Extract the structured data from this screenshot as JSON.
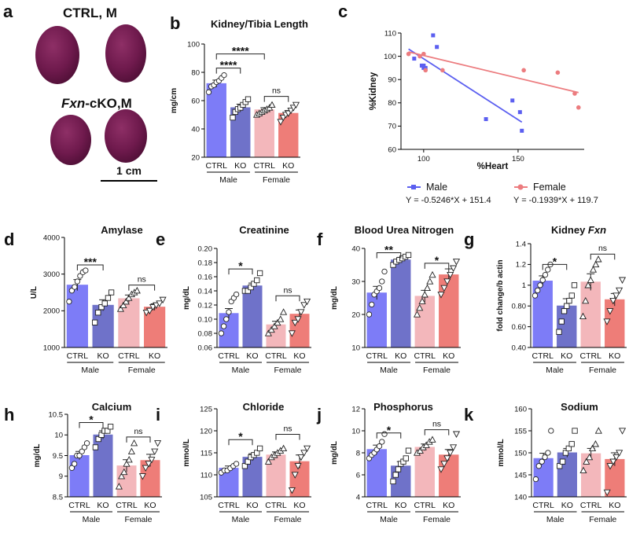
{
  "figure": {
    "photo": {
      "letter": "a",
      "ctrl_label": "CTRL, M",
      "ko_label_italic": "Fxn",
      "ko_label_rest": "-cKO,M",
      "scale_label": "1 cm"
    },
    "scatter_legend": {
      "equations": [
        "Y = -0.5246*X + 151.4",
        "Y = -0.1939*X + 119.7"
      ]
    }
  },
  "colors": {
    "ctrl_male": "#7d7cf7",
    "ko_male": "#6f72c9",
    "ctrl_female": "#f3b7bb",
    "ko_female": "#ee7d78",
    "male_line": "#5b5ff0",
    "female_line": "#ec7c7f"
  },
  "chart_data": [
    {
      "id": "b",
      "type": "bar",
      "letter": "b",
      "title": "Kidney/Tibia Length",
      "ylabel": "mg/cm",
      "ylim": [
        20,
        100
      ],
      "yticks": [
        20,
        40,
        60,
        80,
        100
      ],
      "categories": [
        "CTRL",
        "KO",
        "CTRL",
        "KO"
      ],
      "groups": [
        "Male",
        "Female"
      ],
      "values": [
        72,
        55,
        53.5,
        51
      ],
      "errors": [
        2.5,
        2.5,
        1.5,
        2
      ],
      "points": [
        [
          66,
          70,
          71,
          73,
          74,
          76,
          78
        ],
        [
          48,
          52,
          54,
          55,
          57,
          59,
          61
        ],
        [
          50,
          51,
          52,
          53,
          54,
          55,
          57
        ],
        [
          45,
          48,
          50,
          51,
          53,
          55,
          57
        ]
      ],
      "markers": [
        "circle",
        "square",
        "triangle",
        "tri-down"
      ],
      "sig": [
        {
          "a": 0,
          "b": 1,
          "label": "****",
          "level": 83
        },
        {
          "a": 0,
          "b": 2,
          "label": "****",
          "level": 93
        },
        {
          "a": 2,
          "b": 3,
          "label": "ns",
          "level": 63
        }
      ]
    },
    {
      "id": "c",
      "type": "scatter",
      "letter": "c",
      "xlabel": "%Heart",
      "ylabel": "%Kidney",
      "xlim": [
        88,
        185
      ],
      "ylim": [
        60,
        110
      ],
      "xticks": [
        100,
        150
      ],
      "yticks": [
        60,
        70,
        80,
        90,
        100,
        110
      ],
      "series": [
        {
          "name": "Male",
          "marker": "square",
          "x": [
            95,
            99,
            100,
            100,
            101,
            105,
            107,
            133,
            147,
            151,
            152
          ],
          "y": [
            99,
            96,
            95,
            96,
            95,
            109,
            104,
            73,
            81,
            76,
            68
          ]
        },
        {
          "name": "Female",
          "marker": "circle",
          "x": [
            92,
            98,
            100,
            101,
            110,
            153,
            171,
            180,
            182
          ],
          "y": [
            101,
            100,
            101,
            94,
            94,
            94,
            93,
            84,
            78
          ]
        }
      ],
      "lines": [
        {
          "x": [
            92,
            152
          ],
          "y": [
            103.1,
            71.7
          ]
        },
        {
          "x": [
            92,
            182
          ],
          "y": [
            101.9,
            84.4
          ]
        }
      ]
    },
    {
      "id": "d",
      "type": "bar",
      "letter": "d",
      "title": "Amylase",
      "ylabel": "U/L",
      "ylim": [
        1000,
        4000
      ],
      "yticks": [
        1000,
        2000,
        3000,
        4000
      ],
      "categories": [
        "CTRL",
        "KO",
        "CTRL",
        "KO"
      ],
      "groups": [
        "Male",
        "Female"
      ],
      "values": [
        2700,
        2150,
        2330,
        2100
      ],
      "errors": [
        150,
        150,
        100,
        90
      ],
      "points": [
        [
          2250,
          2550,
          2650,
          2800,
          2950,
          3050,
          3100
        ],
        [
          1680,
          1950,
          2100,
          2200,
          2350,
          2500
        ],
        [
          2050,
          2150,
          2250,
          2350,
          2450,
          2500,
          2550
        ],
        [
          1950,
          2000,
          2100,
          2150,
          2200,
          2300
        ]
      ],
      "markers": [
        "circle",
        "square",
        "triangle",
        "tri-down"
      ],
      "sig": [
        {
          "a": 0,
          "b": 1,
          "label": "***",
          "level": 3250
        },
        {
          "a": 2,
          "b": 3,
          "label": "ns",
          "level": 2700
        }
      ]
    },
    {
      "id": "e",
      "type": "bar",
      "letter": "e",
      "title": "Creatinine",
      "ylabel": "mg/dL",
      "ylim": [
        0.06,
        0.2
      ],
      "yticks": [
        0.06,
        0.08,
        0.1,
        0.12,
        0.14,
        0.16,
        0.18,
        0.2
      ],
      "categories": [
        "CTRL",
        "KO",
        "CTRL",
        "KO"
      ],
      "groups": [
        "Male",
        "Female"
      ],
      "values": [
        0.108,
        0.147,
        0.092,
        0.107
      ],
      "errors": [
        0.007,
        0.004,
        0.005,
        0.006
      ],
      "points": [
        [
          0.08,
          0.09,
          0.1,
          0.11,
          0.125,
          0.13,
          0.135
        ],
        [
          0.14,
          0.14,
          0.145,
          0.15,
          0.155,
          0.165
        ],
        [
          0.08,
          0.085,
          0.09,
          0.095,
          0.1,
          0.11
        ],
        [
          0.08,
          0.095,
          0.1,
          0.11,
          0.12,
          0.125
        ]
      ],
      "markers": [
        "circle",
        "square",
        "triangle",
        "tri-down"
      ],
      "sig": [
        {
          "a": 0,
          "b": 1,
          "label": "*",
          "level": 0.171
        },
        {
          "a": 2,
          "b": 3,
          "label": "ns",
          "level": 0.133
        }
      ]
    },
    {
      "id": "f",
      "type": "bar",
      "letter": "f",
      "title": "Blood Urea Nitrogen",
      "ylabel": "mg/dL",
      "ylim": [
        10,
        40
      ],
      "yticks": [
        10,
        20,
        30,
        40
      ],
      "categories": [
        "CTRL",
        "KO",
        "CTRL",
        "KO"
      ],
      "groups": [
        "Male",
        "Female"
      ],
      "values": [
        26.5,
        36.5,
        25.5,
        32
      ],
      "errors": [
        2,
        0.8,
        1.8,
        1.8
      ],
      "points": [
        [
          20,
          23,
          26,
          27,
          28,
          30,
          33
        ],
        [
          35,
          36,
          36.5,
          37,
          37.5,
          38
        ],
        [
          20,
          22,
          24,
          26,
          28,
          30,
          32
        ],
        [
          26,
          28,
          30,
          32,
          34,
          36
        ]
      ],
      "markers": [
        "circle",
        "square",
        "triangle",
        "tri-down"
      ],
      "sig": [
        {
          "a": 0,
          "b": 1,
          "label": "**",
          "level": 38.7
        },
        {
          "a": 2,
          "b": 3,
          "label": "*",
          "level": 35.5
        }
      ]
    },
    {
      "id": "g",
      "type": "bar",
      "letter": "g",
      "title": "Kidney",
      "title_italic": "Fxn",
      "ylabel": "fold change/b actin",
      "ylim": [
        0.4,
        1.4
      ],
      "yticks": [
        0.4,
        0.6,
        0.8,
        1.0,
        1.2,
        1.4
      ],
      "categories": [
        "CTRL",
        "KO",
        "CTRL",
        "KO"
      ],
      "groups": [
        "Male",
        "Female"
      ],
      "values": [
        1.04,
        0.8,
        1.03,
        0.86
      ],
      "errors": [
        0.05,
        0.07,
        0.08,
        0.06
      ],
      "points": [
        [
          0.9,
          0.95,
          1.0,
          1.05,
          1.1,
          1.15,
          1.2
        ],
        [
          0.55,
          0.65,
          0.75,
          0.8,
          0.85,
          0.9,
          1.0
        ],
        [
          0.7,
          0.85,
          1.0,
          1.05,
          1.15,
          1.2,
          1.25
        ],
        [
          0.65,
          0.75,
          0.85,
          0.9,
          0.95,
          1.05
        ]
      ],
      "markers": [
        "circle",
        "square",
        "triangle",
        "tri-down"
      ],
      "sig": [
        {
          "a": 0,
          "b": 1,
          "label": "*",
          "level": 1.2
        },
        {
          "a": 2,
          "b": 3,
          "label": "ns",
          "level": 1.3
        }
      ]
    },
    {
      "id": "h",
      "type": "bar",
      "letter": "h",
      "title": "Calcium",
      "ylabel": "mg/dL",
      "ylim": [
        8.5,
        10.5
      ],
      "yticks": [
        8.5,
        9.0,
        9.5,
        10.0,
        10.5
      ],
      "categories": [
        "CTRL",
        "KO",
        "CTRL",
        "KO"
      ],
      "groups": [
        "Male",
        "Female"
      ],
      "values": [
        9.5,
        10.0,
        9.25,
        9.38
      ],
      "errors": [
        0.1,
        0.1,
        0.15,
        0.15
      ],
      "points": [
        [
          9.2,
          9.3,
          9.5,
          9.5,
          9.6,
          9.7,
          9.8
        ],
        [
          9.7,
          9.9,
          10.0,
          10.1,
          10.1,
          10.2
        ],
        [
          8.75,
          9.0,
          9.1,
          9.3,
          9.4,
          9.6,
          9.8
        ],
        [
          9.0,
          9.2,
          9.3,
          9.4,
          9.6,
          9.8
        ]
      ],
      "markers": [
        "circle",
        "square",
        "triangle",
        "tri-down"
      ],
      "sig": [
        {
          "a": 0,
          "b": 1,
          "label": "*",
          "level": 10.3
        },
        {
          "a": 2,
          "b": 3,
          "label": "ns",
          "level": 9.95
        }
      ]
    },
    {
      "id": "i",
      "type": "bar",
      "letter": "i",
      "title": "Chloride",
      "ylabel": "mmol/L",
      "ylim": [
        105,
        125
      ],
      "yticks": [
        105,
        110,
        115,
        120,
        125
      ],
      "categories": [
        "CTRL",
        "KO",
        "CTRL",
        "KO"
      ],
      "groups": [
        "Male",
        "Female"
      ],
      "values": [
        111.5,
        114,
        114.5,
        113
      ],
      "errors": [
        0.5,
        0.8,
        0.7,
        1.5
      ],
      "points": [
        [
          110.5,
          111,
          111,
          111.5,
          112,
          112.5
        ],
        [
          112,
          113,
          114,
          114.5,
          115,
          116
        ],
        [
          113,
          114,
          114.5,
          115,
          115.5,
          116
        ],
        [
          106.5,
          110,
          112,
          114,
          115,
          116
        ]
      ],
      "markers": [
        "circle",
        "square",
        "triangle",
        "tri-down"
      ],
      "sig": [
        {
          "a": 0,
          "b": 1,
          "label": "*",
          "level": 118
        },
        {
          "a": 2,
          "b": 3,
          "label": "ns",
          "level": 119.2
        }
      ]
    },
    {
      "id": "j",
      "type": "bar",
      "letter": "j",
      "title": "Phosphorus",
      "ylabel": "mg/dL",
      "ylim": [
        4,
        12
      ],
      "yticks": [
        4,
        6,
        8,
        10,
        12
      ],
      "categories": [
        "CTRL",
        "KO",
        "CTRL",
        "KO"
      ],
      "groups": [
        "Male",
        "Female"
      ],
      "values": [
        8.3,
        6.8,
        8.5,
        7.8
      ],
      "errors": [
        0.4,
        0.4,
        0.3,
        0.5
      ],
      "points": [
        [
          7.5,
          7.8,
          8.0,
          8.3,
          8.6,
          9.0,
          9.7
        ],
        [
          5.4,
          6.0,
          6.5,
          7.0,
          7.2,
          7.5,
          8.2
        ],
        [
          8.0,
          8.2,
          8.5,
          8.7,
          9.0,
          9.2
        ],
        [
          6.5,
          7.0,
          7.5,
          8.0,
          8.5,
          9.7
        ]
      ],
      "markers": [
        "circle",
        "square",
        "triangle",
        "tri-down"
      ],
      "sig": [
        {
          "a": 0,
          "b": 1,
          "label": "*",
          "level": 9.8
        },
        {
          "a": 2,
          "b": 3,
          "label": "ns",
          "level": 10.1
        }
      ]
    },
    {
      "id": "k",
      "type": "bar",
      "letter": "k",
      "title": "Sodium",
      "ylabel": "mmol/L",
      "ylim": [
        140,
        160
      ],
      "yticks": [
        140,
        145,
        150,
        155,
        160
      ],
      "categories": [
        "CTRL",
        "KO",
        "CTRL",
        "KO"
      ],
      "groups": [
        "Male",
        "Female"
      ],
      "values": [
        148.7,
        150,
        149.8,
        148.5
      ],
      "errors": [
        1.2,
        1,
        1.2,
        1.5
      ],
      "points": [
        [
          144,
          147,
          148,
          149,
          150,
          155
        ],
        [
          147,
          148,
          150,
          151,
          152,
          155
        ],
        [
          146,
          148,
          149,
          151,
          152,
          155
        ],
        [
          141,
          147,
          148,
          149,
          150,
          155
        ]
      ],
      "markers": [
        "circle",
        "square",
        "triangle",
        "tri-down"
      ],
      "sig": []
    }
  ]
}
